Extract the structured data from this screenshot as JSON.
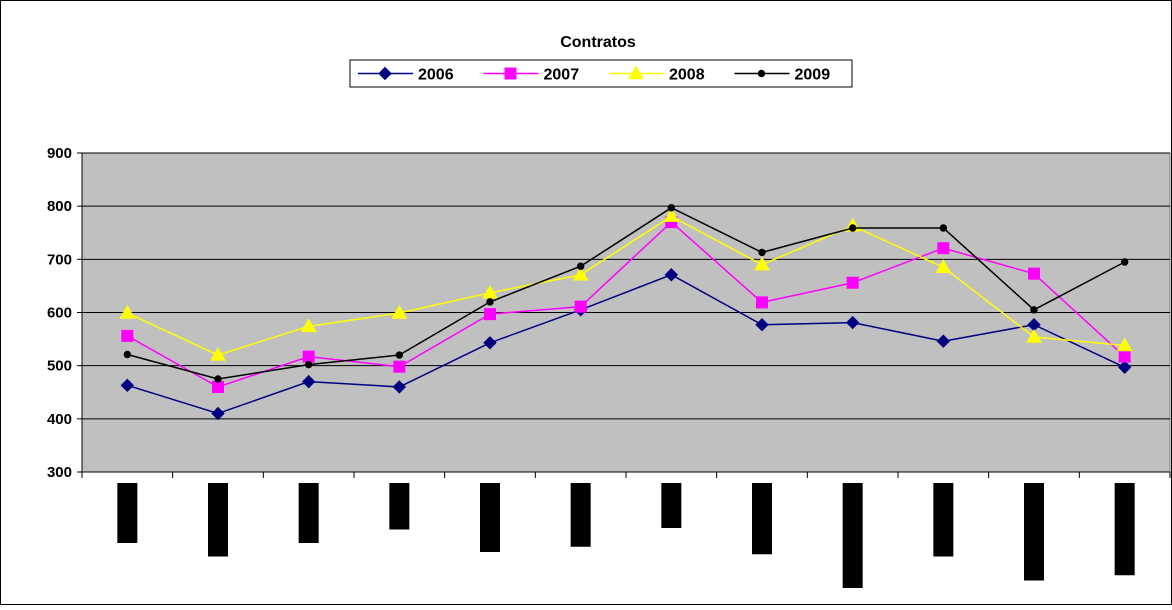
{
  "chart_data": {
    "type": "line",
    "title": "Contratos",
    "xlabel": "",
    "ylabel": "",
    "ylim": [
      300,
      900
    ],
    "yticks": [
      300,
      400,
      500,
      600,
      700,
      800,
      900
    ],
    "grid": true,
    "legend_position": "top",
    "background_color": "#c0c0c0",
    "x": [
      1,
      2,
      3,
      4,
      5,
      6,
      7,
      8,
      9,
      10,
      11,
      12
    ],
    "category_bar_lengths": [
      0.8,
      0.98,
      0.8,
      0.62,
      0.92,
      0.85,
      0.6,
      0.95,
      1.4,
      0.98,
      1.3,
      1.23
    ],
    "series": [
      {
        "name": "2006",
        "color": "#000080",
        "marker": "diamond",
        "values": [
          463,
          410,
          470,
          460,
          543,
          605,
          671,
          577,
          581,
          546,
          577,
          497
        ]
      },
      {
        "name": "2007",
        "color": "#ff00ff",
        "marker": "square",
        "values": [
          556,
          460,
          517,
          498,
          597,
          611,
          770,
          619,
          656,
          721,
          673,
          517
        ]
      },
      {
        "name": "2008",
        "color": "#ffff00",
        "marker": "triangle",
        "values": [
          599,
          520,
          574,
          599,
          637,
          671,
          781,
          690,
          763,
          685,
          554,
          538
        ]
      },
      {
        "name": "2009",
        "color": "#000000",
        "marker": "circle",
        "values": [
          521,
          475,
          502,
          520,
          620,
          687,
          797,
          713,
          759,
          759,
          605,
          695
        ]
      }
    ]
  }
}
